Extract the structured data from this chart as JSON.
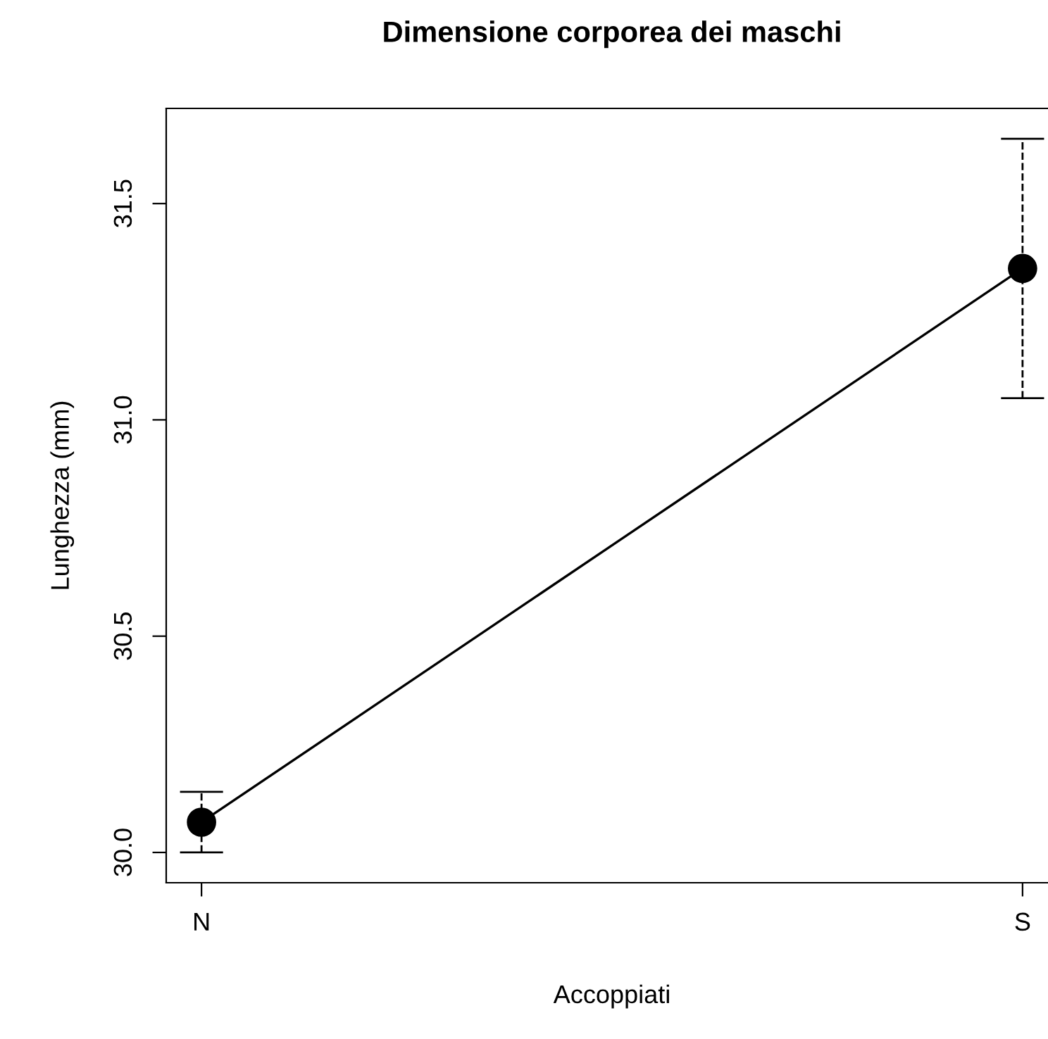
{
  "chart_data": {
    "type": "line",
    "title": "Dimensione corporea dei maschi",
    "xlabel": "Accoppiati",
    "ylabel": "Lunghezza (mm)",
    "categories": [
      "N",
      "S"
    ],
    "series": [
      {
        "color": "#000000",
        "values": [
          30.07,
          31.35
        ],
        "errors": [
          0.07,
          0.3
        ]
      }
    ],
    "ylim": [
      29.93,
      31.72
    ],
    "yticks": [
      {
        "value": 30.0,
        "label": "30.0"
      },
      {
        "value": 30.5,
        "label": "30.5"
      },
      {
        "value": 31.0,
        "label": "31.0"
      },
      {
        "value": 31.5,
        "label": "31.5"
      }
    ],
    "marker": "circle",
    "line_style": "solid",
    "grid": false,
    "legend": false
  }
}
